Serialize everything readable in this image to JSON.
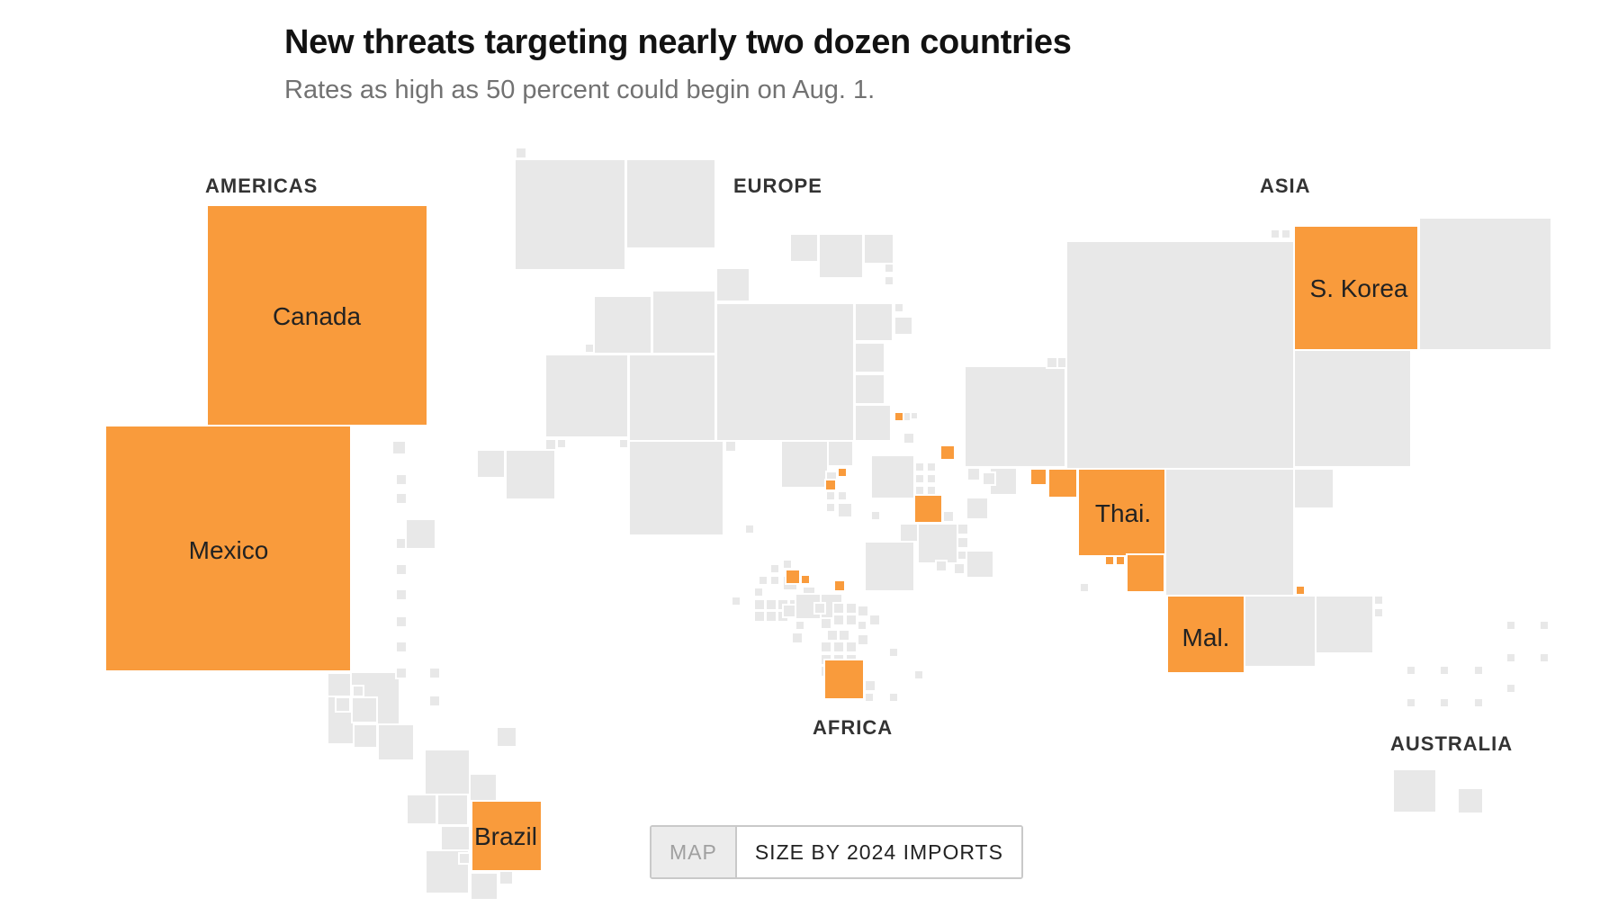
{
  "title": "New threats targeting nearly two dozen countries",
  "subtitle": "Rates as high as 50 percent could begin on Aug. 1.",
  "regions": {
    "americas": "AMERICAS",
    "europe": "EUROPE",
    "asia": "ASIA",
    "africa": "AFRICA",
    "australia": "AUSTRALIA"
  },
  "country_labels": {
    "canada": "Canada",
    "mexico": "Mexico",
    "brazil": "Brazil",
    "s_korea": "S. Korea",
    "thailand": "Thai.",
    "malaysia": "Mal."
  },
  "toggle": {
    "map_label": "MAP",
    "size_label": "SIZE BY 2024 IMPORTS",
    "selected": "SIZE BY 2024 IMPORTS"
  },
  "colors": {
    "targeted": "#f99b3c",
    "other": "#e8e8e8"
  }
}
